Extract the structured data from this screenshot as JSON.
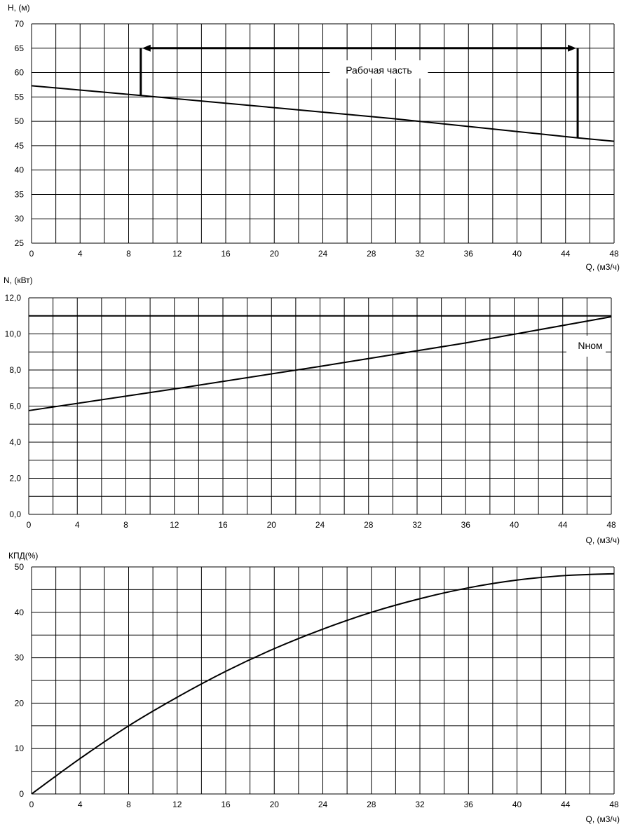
{
  "chart_data": [
    {
      "type": "line",
      "ylabel": "H, (м)",
      "xlabel": "Q, (м3/ч)",
      "xlim": [
        0,
        48
      ],
      "ylim": [
        25,
        70
      ],
      "x_ticks": [
        "0",
        "4",
        "8",
        "12",
        "16",
        "20",
        "24",
        "28",
        "32",
        "36",
        "40",
        "44",
        "48"
      ],
      "y_ticks": [
        "25",
        "30",
        "35",
        "40",
        "45",
        "50",
        "55",
        "60",
        "65",
        "70"
      ],
      "series": [
        {
          "x": [
            0,
            9,
            20,
            30,
            45,
            48
          ],
          "values": [
            57.3,
            55.3,
            52.8,
            50.5,
            46.6,
            45.9
          ]
        }
      ],
      "annotation": {
        "text": "Рабочая часть",
        "q_min": 9,
        "q_max": 45,
        "h_arrow": 65
      }
    },
    {
      "type": "line",
      "ylabel": "N, (кВт)",
      "xlabel": "Q, (м3/ч)",
      "xlim": [
        0,
        48
      ],
      "ylim": [
        0,
        12
      ],
      "x_ticks": [
        "0",
        "4",
        "8",
        "12",
        "16",
        "20",
        "24",
        "28",
        "32",
        "36",
        "40",
        "44",
        "48"
      ],
      "y_ticks": [
        "0,0",
        "2,0",
        "4,0",
        "6,0",
        "8,0",
        "10,0",
        "12,0"
      ],
      "series": [
        {
          "x": [
            0,
            12,
            24,
            36,
            48
          ],
          "values": [
            5.75,
            6.95,
            8.2,
            9.5,
            10.95
          ]
        },
        {
          "x": [
            0,
            48
          ],
          "values": [
            11.0,
            11.0
          ]
        }
      ],
      "nominal_label": "Nном"
    },
    {
      "type": "line",
      "ylabel": "КПД(%)",
      "xlabel": "Q, (м3/ч)",
      "xlim": [
        0,
        48
      ],
      "ylim": [
        0,
        50
      ],
      "x_ticks": [
        "0",
        "4",
        "8",
        "12",
        "16",
        "20",
        "24",
        "28",
        "32",
        "36",
        "40",
        "44",
        "48"
      ],
      "y_ticks": [
        "0",
        "10",
        "20",
        "30",
        "40",
        "50"
      ],
      "series": [
        {
          "x": [
            0,
            4,
            8,
            12,
            16,
            20,
            24,
            28,
            32,
            36,
            40,
            44,
            48
          ],
          "values": [
            0,
            7.8,
            15,
            21.3,
            27,
            32,
            36.3,
            40,
            43,
            45.4,
            47.1,
            48.1,
            48.5
          ]
        }
      ]
    }
  ]
}
